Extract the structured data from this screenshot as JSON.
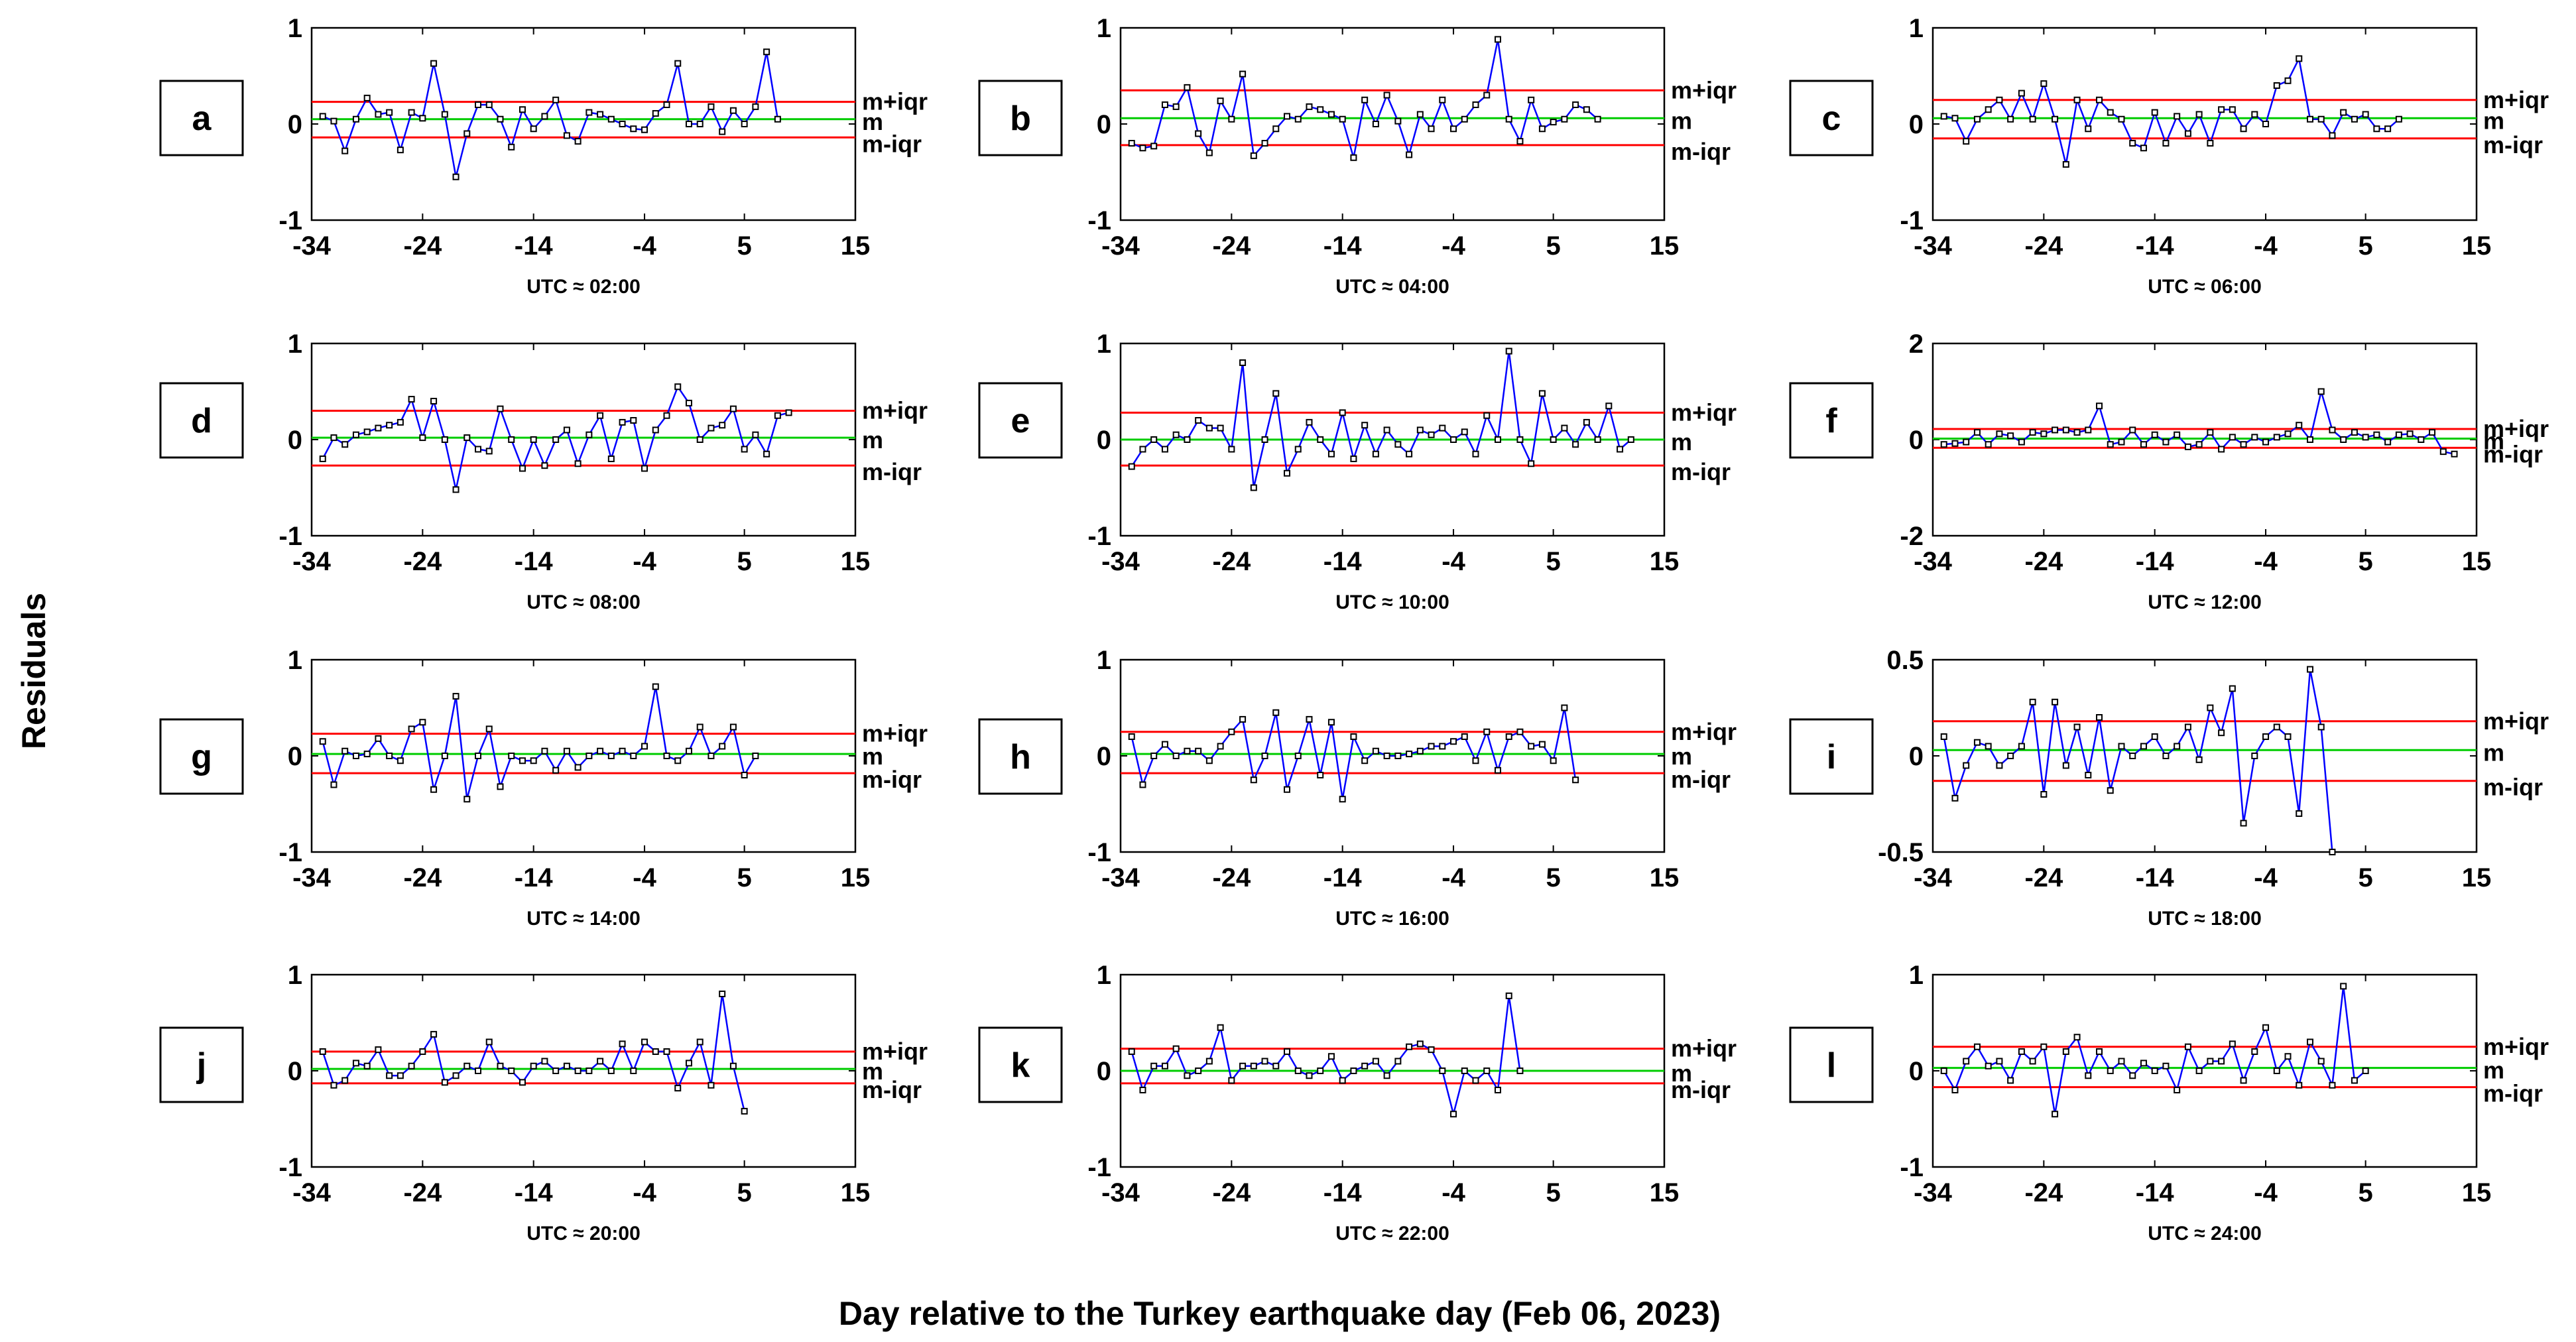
{
  "figure": {
    "ylabel": "Residuals",
    "xlabel": "Day relative to the Turkey earthquake day (Feb 06, 2023)",
    "colors": {
      "series": "#0000ff",
      "bounds": "#ff0000",
      "median": "#00cc00",
      "markers": "#000000"
    },
    "line_labels": {
      "upper": "m+iqr",
      "median": "m",
      "lower": "m-iqr"
    }
  },
  "chart_data": [
    {
      "panel": "a",
      "type": "line",
      "subtitle": "UTC ≈ 02:00",
      "xlim": [
        -34,
        15
      ],
      "xticks": [
        "-34",
        "-24",
        "-14",
        "-4",
        "5",
        "15"
      ],
      "ylim": [
        -1,
        1
      ],
      "yticks": [
        "-1",
        "0",
        "1"
      ],
      "m": 0.05,
      "m_plus_iqr": 0.23,
      "m_minus_iqr": -0.14,
      "x_start": -33,
      "values": [
        0.08,
        0.03,
        -0.28,
        0.05,
        0.27,
        0.1,
        0.12,
        -0.27,
        0.12,
        0.06,
        0.63,
        0.1,
        -0.55,
        -0.1,
        0.2,
        0.2,
        0.05,
        -0.24,
        0.15,
        -0.05,
        0.08,
        0.25,
        -0.12,
        -0.18,
        0.12,
        0.1,
        0.05,
        0.0,
        -0.05,
        -0.06,
        0.11,
        0.2,
        0.63,
        0.0,
        0.0,
        0.18,
        -0.08,
        0.14,
        0.0,
        0.18,
        0.75,
        0.05
      ]
    },
    {
      "panel": "b",
      "type": "line",
      "subtitle": "UTC ≈ 04:00",
      "xlim": [
        -34,
        15
      ],
      "xticks": [
        "-34",
        "-24",
        "-14",
        "-4",
        "5",
        "15"
      ],
      "ylim": [
        -1,
        1
      ],
      "yticks": [
        "-1",
        "0",
        "1"
      ],
      "m": 0.06,
      "m_plus_iqr": 0.35,
      "m_minus_iqr": -0.22,
      "x_start": -33,
      "values": [
        -0.2,
        -0.25,
        -0.23,
        0.2,
        0.18,
        0.38,
        -0.1,
        -0.3,
        0.24,
        0.05,
        0.52,
        -0.33,
        -0.2,
        -0.05,
        0.08,
        0.05,
        0.18,
        0.15,
        0.1,
        0.05,
        -0.35,
        0.25,
        0.0,
        0.3,
        0.03,
        -0.32,
        0.1,
        -0.05,
        0.25,
        -0.05,
        0.05,
        0.2,
        0.3,
        0.88,
        0.05,
        -0.18,
        0.25,
        -0.05,
        0.02,
        0.05,
        0.2,
        0.15,
        0.05
      ]
    },
    {
      "panel": "c",
      "type": "line",
      "subtitle": "UTC ≈ 06:00",
      "xlim": [
        -34,
        15
      ],
      "xticks": [
        "-34",
        "-24",
        "-14",
        "-4",
        "5",
        "15"
      ],
      "ylim": [
        -1,
        1
      ],
      "yticks": [
        "-1",
        "0",
        "1"
      ],
      "m": 0.06,
      "m_plus_iqr": 0.25,
      "m_minus_iqr": -0.15,
      "x_start": -33,
      "values": [
        0.08,
        0.06,
        -0.18,
        0.05,
        0.15,
        0.25,
        0.05,
        0.32,
        0.05,
        0.42,
        0.05,
        -0.42,
        0.25,
        -0.05,
        0.25,
        0.12,
        0.05,
        -0.2,
        -0.25,
        0.12,
        -0.2,
        0.08,
        -0.1,
        0.1,
        -0.2,
        0.15,
        0.15,
        -0.05,
        0.1,
        0.0,
        0.4,
        0.45,
        0.68,
        0.05,
        0.05,
        -0.12,
        0.12,
        0.05,
        0.1,
        -0.05,
        -0.05,
        0.05
      ]
    },
    {
      "panel": "d",
      "type": "line",
      "subtitle": "UTC ≈ 08:00",
      "xlim": [
        -34,
        15
      ],
      "xticks": [
        "-34",
        "-24",
        "-14",
        "-4",
        "5",
        "15"
      ],
      "ylim": [
        -1,
        1
      ],
      "yticks": [
        "-1",
        "0",
        "1"
      ],
      "m": 0.02,
      "m_plus_iqr": 0.3,
      "m_minus_iqr": -0.27,
      "x_start": -33,
      "values": [
        -0.2,
        0.02,
        -0.05,
        0.05,
        0.08,
        0.12,
        0.15,
        0.18,
        0.42,
        0.02,
        0.4,
        0.0,
        -0.52,
        0.02,
        -0.1,
        -0.12,
        0.32,
        0.0,
        -0.3,
        0.0,
        -0.27,
        0.0,
        0.1,
        -0.25,
        0.05,
        0.25,
        -0.2,
        0.18,
        0.2,
        -0.3,
        0.1,
        0.25,
        0.55,
        0.38,
        0.0,
        0.12,
        0.15,
        0.32,
        -0.1,
        0.05,
        -0.15,
        0.25,
        0.28
      ]
    },
    {
      "panel": "e",
      "type": "line",
      "subtitle": "UTC ≈ 10:00",
      "xlim": [
        -34,
        15
      ],
      "xticks": [
        "-34",
        "-24",
        "-14",
        "-4",
        "5",
        "15"
      ],
      "ylim": [
        -1,
        1
      ],
      "yticks": [
        "-1",
        "0",
        "1"
      ],
      "m": 0.0,
      "m_plus_iqr": 0.28,
      "m_minus_iqr": -0.27,
      "x_start": -33,
      "values": [
        -0.28,
        -0.1,
        0.0,
        -0.1,
        0.05,
        0.0,
        0.2,
        0.12,
        0.12,
        -0.1,
        0.8,
        -0.5,
        0.0,
        0.48,
        -0.35,
        -0.1,
        0.18,
        0.0,
        -0.15,
        0.28,
        -0.2,
        0.15,
        -0.15,
        0.1,
        -0.05,
        -0.15,
        0.1,
        0.05,
        0.12,
        0.0,
        0.08,
        -0.15,
        0.25,
        0.0,
        0.92,
        0.0,
        -0.25,
        0.48,
        0.0,
        0.12,
        -0.05,
        0.18,
        0.0,
        0.35,
        -0.1,
        0.0
      ]
    },
    {
      "panel": "f",
      "type": "line",
      "subtitle": "UTC ≈ 12:00",
      "xlim": [
        -34,
        15
      ],
      "xticks": [
        "-34",
        "-24",
        "-14",
        "-4",
        "5",
        "15"
      ],
      "ylim": [
        -2,
        2
      ],
      "yticks": [
        "-2",
        "0",
        "2"
      ],
      "m": 0.02,
      "m_plus_iqr": 0.22,
      "m_minus_iqr": -0.17,
      "x_start": -33,
      "values": [
        -0.1,
        -0.08,
        -0.05,
        0.15,
        -0.1,
        0.12,
        0.08,
        -0.05,
        0.15,
        0.12,
        0.2,
        0.2,
        0.15,
        0.2,
        0.7,
        -0.1,
        -0.05,
        0.2,
        -0.1,
        0.1,
        -0.05,
        0.1,
        -0.15,
        -0.1,
        0.15,
        -0.2,
        0.05,
        -0.1,
        0.05,
        -0.05,
        0.05,
        0.12,
        0.3,
        0.0,
        1.0,
        0.2,
        0.0,
        0.15,
        0.05,
        0.1,
        -0.05,
        0.1,
        0.12,
        0.0,
        0.15,
        -0.25,
        -0.3
      ]
    },
    {
      "panel": "g",
      "type": "line",
      "subtitle": "UTC ≈ 14:00",
      "xlim": [
        -34,
        15
      ],
      "xticks": [
        "-34",
        "-24",
        "-14",
        "-4",
        "5",
        "15"
      ],
      "ylim": [
        -1,
        1
      ],
      "yticks": [
        "-1",
        "0",
        "1"
      ],
      "m": 0.02,
      "m_plus_iqr": 0.23,
      "m_minus_iqr": -0.18,
      "x_start": -33,
      "values": [
        0.15,
        -0.3,
        0.05,
        0.0,
        0.02,
        0.18,
        0.0,
        -0.05,
        0.28,
        0.35,
        -0.35,
        0.0,
        0.62,
        -0.45,
        0.0,
        0.28,
        -0.32,
        0.0,
        -0.05,
        -0.05,
        0.05,
        -0.15,
        0.05,
        -0.12,
        0.0,
        0.05,
        0.0,
        0.05,
        0.0,
        0.1,
        0.72,
        0.0,
        -0.05,
        0.05,
        0.3,
        0.0,
        0.1,
        0.3,
        -0.2,
        0.0
      ]
    },
    {
      "panel": "h",
      "type": "line",
      "subtitle": "UTC ≈ 16:00",
      "xlim": [
        -34,
        15
      ],
      "xticks": [
        "-34",
        "-24",
        "-14",
        "-4",
        "5",
        "15"
      ],
      "ylim": [
        -1,
        1
      ],
      "yticks": [
        "-1",
        "0",
        "1"
      ],
      "m": 0.02,
      "m_plus_iqr": 0.25,
      "m_minus_iqr": -0.18,
      "x_start": -33,
      "values": [
        0.2,
        -0.3,
        0.0,
        0.12,
        0.0,
        0.05,
        0.05,
        -0.05,
        0.1,
        0.25,
        0.38,
        -0.25,
        0.0,
        0.45,
        -0.35,
        0.0,
        0.38,
        -0.2,
        0.35,
        -0.45,
        0.2,
        -0.05,
        0.05,
        0.0,
        0.0,
        0.02,
        0.05,
        0.1,
        0.1,
        0.15,
        0.2,
        -0.05,
        0.25,
        -0.15,
        0.2,
        0.25,
        0.1,
        0.12,
        -0.05,
        0.5,
        -0.25
      ]
    },
    {
      "panel": "i",
      "type": "line",
      "subtitle": "UTC ≈ 18:00",
      "xlim": [
        -34,
        15
      ],
      "xticks": [
        "-34",
        "-24",
        "-14",
        "-4",
        "5",
        "15"
      ],
      "ylim": [
        -0.5,
        0.5
      ],
      "yticks": [
        "-0.5",
        "0",
        "0.5"
      ],
      "m": 0.03,
      "m_plus_iqr": 0.18,
      "m_minus_iqr": -0.13,
      "x_start": -33,
      "values": [
        0.1,
        -0.22,
        -0.05,
        0.07,
        0.05,
        -0.05,
        0.0,
        0.05,
        0.28,
        -0.2,
        0.28,
        -0.05,
        0.15,
        -0.1,
        0.2,
        -0.18,
        0.05,
        0.0,
        0.05,
        0.1,
        0.0,
        0.05,
        0.15,
        -0.02,
        0.25,
        0.12,
        0.35,
        -0.35,
        0.0,
        0.1,
        0.15,
        0.1,
        -0.3,
        0.45,
        0.15,
        -0.5
      ]
    },
    {
      "panel": "j",
      "type": "line",
      "subtitle": "UTC ≈ 20:00",
      "xlim": [
        -34,
        15
      ],
      "xticks": [
        "-34",
        "-24",
        "-14",
        "-4",
        "5",
        "15"
      ],
      "ylim": [
        -1,
        1
      ],
      "yticks": [
        "-1",
        "0",
        "1"
      ],
      "m": 0.02,
      "m_plus_iqr": 0.2,
      "m_minus_iqr": -0.13,
      "x_start": -33,
      "values": [
        0.2,
        -0.15,
        -0.1,
        0.08,
        0.05,
        0.22,
        -0.05,
        -0.05,
        0.05,
        0.2,
        0.38,
        -0.12,
        -0.05,
        0.05,
        0.0,
        0.3,
        0.05,
        0.0,
        -0.12,
        0.05,
        0.1,
        0.0,
        0.05,
        0.0,
        0.0,
        0.1,
        0.0,
        0.28,
        0.0,
        0.3,
        0.2,
        0.2,
        -0.18,
        0.08,
        0.3,
        -0.15,
        0.8,
        0.05,
        -0.42
      ]
    },
    {
      "panel": "k",
      "type": "line",
      "subtitle": "UTC ≈ 22:00",
      "xlim": [
        -34,
        15
      ],
      "xticks": [
        "-34",
        "-24",
        "-14",
        "-4",
        "5",
        "15"
      ],
      "ylim": [
        -1,
        1
      ],
      "yticks": [
        "-1",
        "0",
        "1"
      ],
      "m": 0.0,
      "m_plus_iqr": 0.23,
      "m_minus_iqr": -0.13,
      "x_start": -33,
      "values": [
        0.2,
        -0.2,
        0.05,
        0.05,
        0.23,
        -0.05,
        0.0,
        0.1,
        0.45,
        -0.1,
        0.05,
        0.05,
        0.1,
        0.05,
        0.2,
        0.0,
        -0.05,
        0.0,
        0.15,
        -0.1,
        0.0,
        0.05,
        0.1,
        -0.05,
        0.1,
        0.25,
        0.28,
        0.22,
        0.0,
        -0.45,
        0.0,
        -0.1,
        0.0,
        -0.2,
        0.78,
        0.0
      ]
    },
    {
      "panel": "l",
      "type": "line",
      "subtitle": "UTC ≈ 24:00",
      "xlim": [
        -34,
        15
      ],
      "xticks": [
        "-34",
        "-24",
        "-14",
        "-4",
        "5",
        "15"
      ],
      "ylim": [
        -1,
        1
      ],
      "yticks": [
        "-1",
        "0",
        "1"
      ],
      "m": 0.03,
      "m_plus_iqr": 0.25,
      "m_minus_iqr": -0.17,
      "x_start": -33,
      "values": [
        0.0,
        -0.2,
        0.1,
        0.25,
        0.05,
        0.1,
        -0.1,
        0.2,
        0.1,
        0.25,
        -0.45,
        0.2,
        0.35,
        -0.05,
        0.2,
        0.0,
        0.1,
        -0.05,
        0.08,
        0.0,
        0.05,
        -0.2,
        0.25,
        0.0,
        0.1,
        0.1,
        0.28,
        -0.1,
        0.2,
        0.45,
        0.0,
        0.15,
        -0.15,
        0.3,
        0.1,
        -0.15,
        0.88,
        -0.1,
        0.0
      ]
    }
  ]
}
